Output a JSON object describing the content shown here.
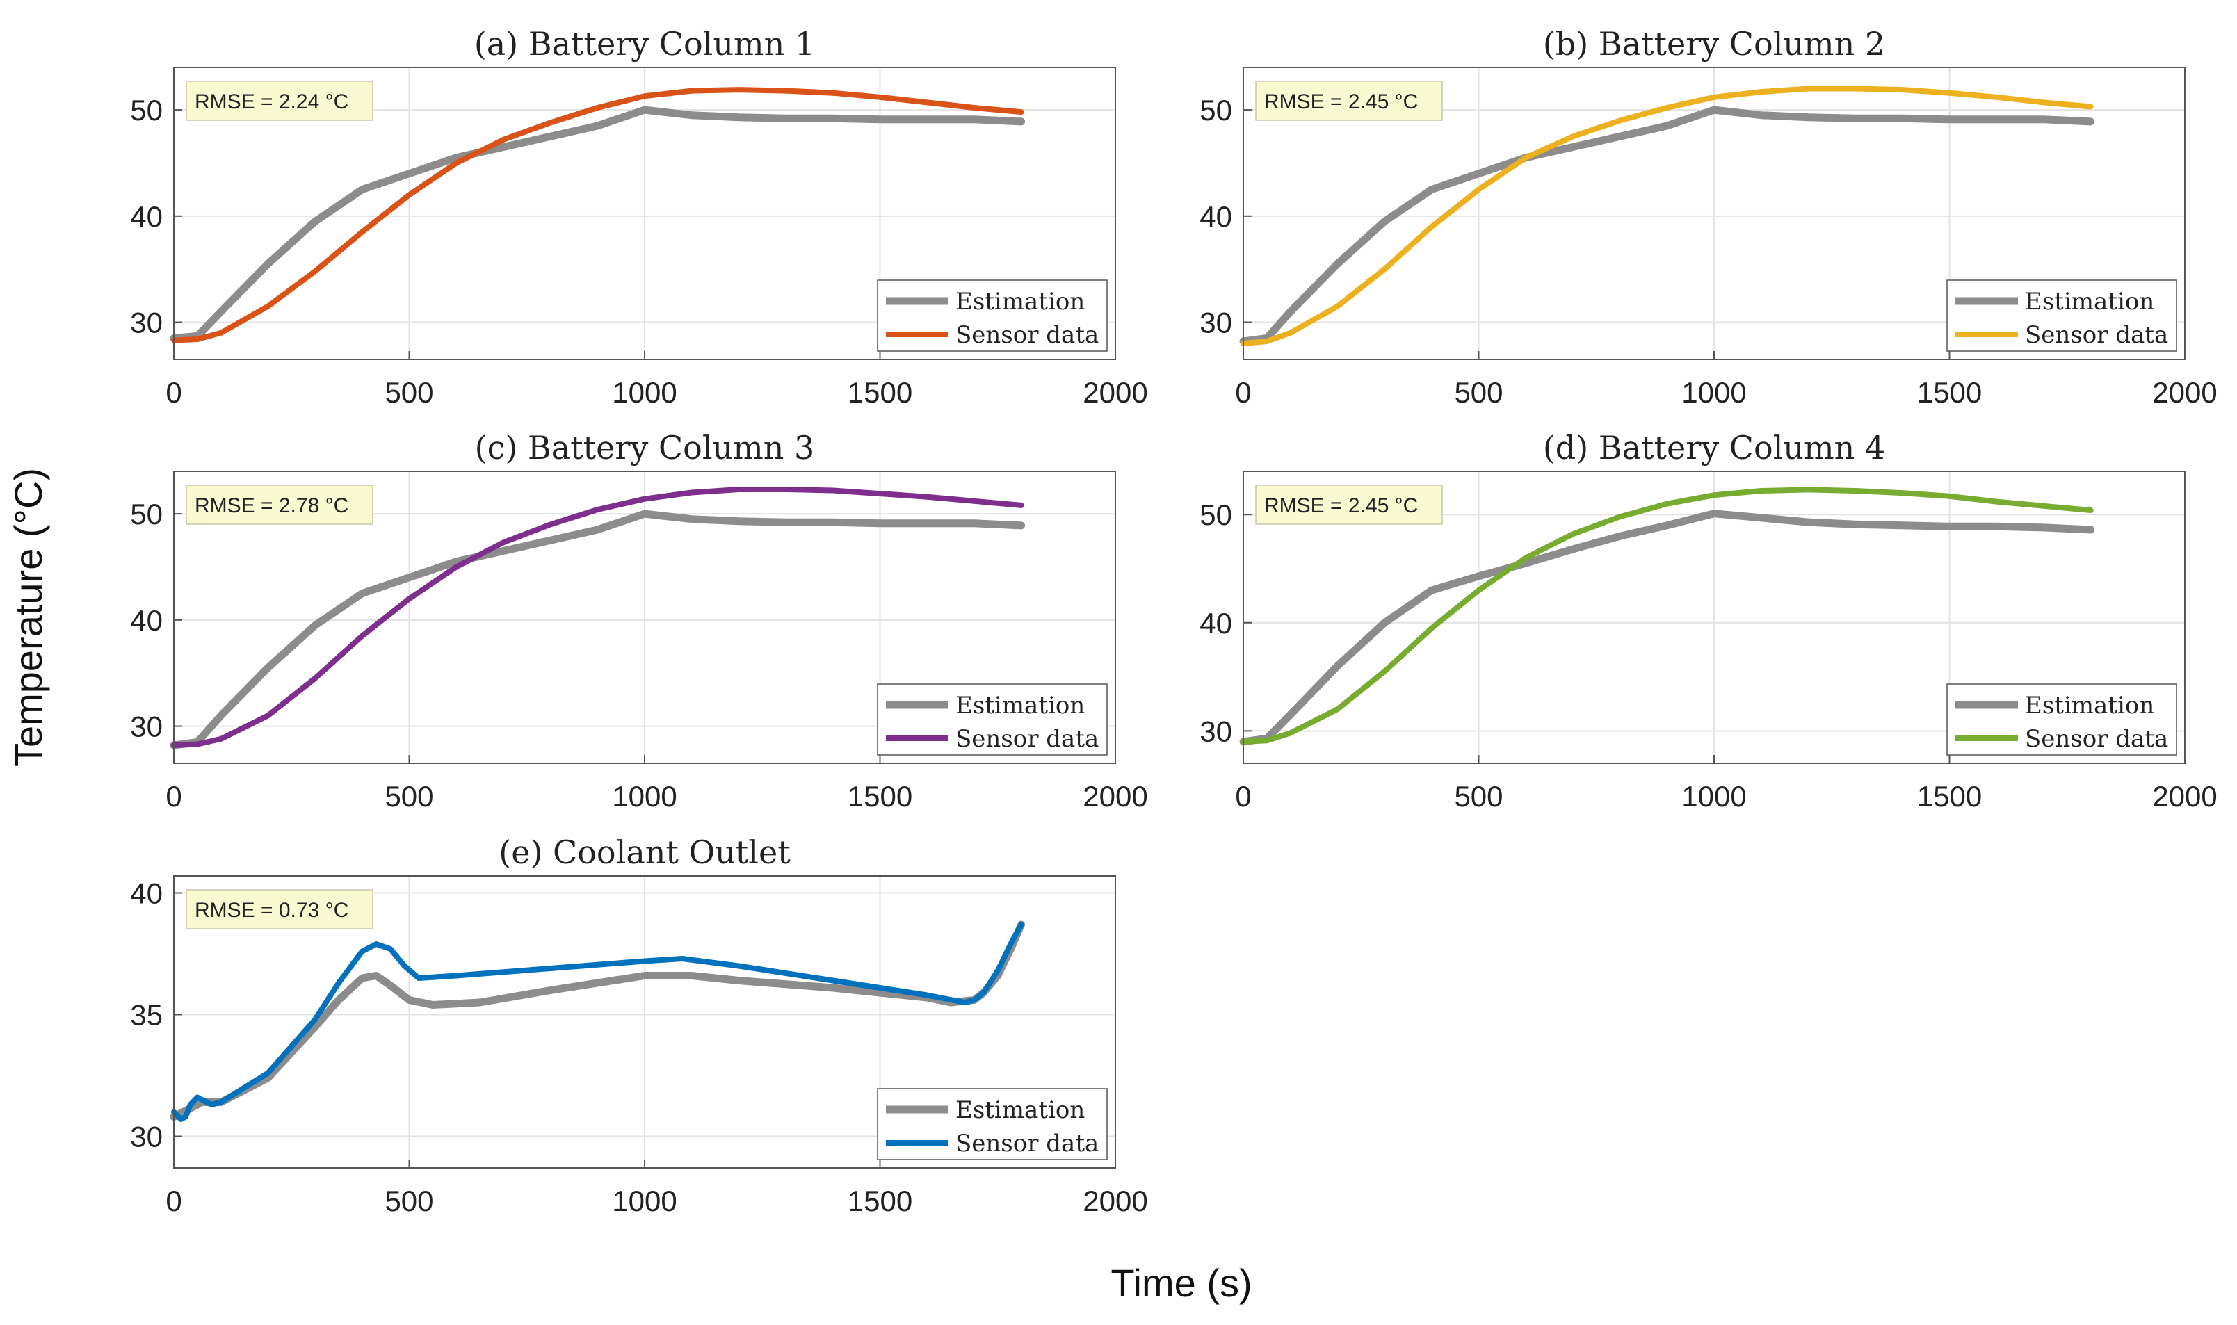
{
  "figure": {
    "ylabel": "Temperature (°C)",
    "xlabel": "Time (s)"
  },
  "colors": {
    "estimation": "#8c8c8c",
    "column1": "#d95319",
    "column2": "#edb120",
    "column3": "#7e2f8e",
    "column4": "#77ac30",
    "coolant": "#0072bd",
    "rmse_box_fill": "#fafad2"
  },
  "chart_data": [
    {
      "type": "line",
      "title": "(a) Battery Column 1",
      "rmse": "RMSE = 2.24 °C",
      "xlim": [
        0,
        2000
      ],
      "ylim": [
        26.5,
        54
      ],
      "xticks": [
        0,
        500,
        1000,
        1500,
        2000
      ],
      "yticks": [
        30,
        40,
        50
      ],
      "legend_placement": "bottom-right",
      "series": [
        {
          "name": "Estimation",
          "color_key": "estimation",
          "x": [
            0,
            50,
            100,
            200,
            300,
            400,
            500,
            600,
            700,
            800,
            900,
            1000,
            1100,
            1200,
            1300,
            1400,
            1500,
            1600,
            1700,
            1800
          ],
          "y": [
            28.5,
            28.7,
            31,
            35.5,
            39.5,
            42.5,
            44,
            45.5,
            46.5,
            47.5,
            48.5,
            50,
            49.5,
            49.3,
            49.2,
            49.2,
            49.1,
            49.1,
            49.1,
            48.9
          ]
        },
        {
          "name": "Sensor data",
          "color_key": "column1",
          "x": [
            0,
            50,
            100,
            200,
            300,
            400,
            500,
            600,
            700,
            800,
            900,
            1000,
            1100,
            1200,
            1300,
            1400,
            1500,
            1600,
            1700,
            1800
          ],
          "y": [
            28.3,
            28.4,
            29,
            31.5,
            34.8,
            38.5,
            42,
            45,
            47.2,
            48.8,
            50.2,
            51.3,
            51.8,
            51.9,
            51.8,
            51.6,
            51.2,
            50.7,
            50.2,
            49.8
          ]
        }
      ]
    },
    {
      "type": "line",
      "title": "(b) Battery Column 2",
      "rmse": "RMSE = 2.45 °C",
      "xlim": [
        0,
        2000
      ],
      "ylim": [
        26.5,
        54
      ],
      "xticks": [
        0,
        500,
        1000,
        1500,
        2000
      ],
      "yticks": [
        30,
        40,
        50
      ],
      "legend_placement": "bottom-right",
      "series": [
        {
          "name": "Estimation",
          "color_key": "estimation",
          "x": [
            0,
            50,
            100,
            200,
            300,
            400,
            500,
            600,
            700,
            800,
            900,
            1000,
            1100,
            1200,
            1300,
            1400,
            1500,
            1600,
            1700,
            1800
          ],
          "y": [
            28.2,
            28.5,
            31,
            35.5,
            39.5,
            42.5,
            44,
            45.5,
            46.5,
            47.5,
            48.5,
            50,
            49.5,
            49.3,
            49.2,
            49.2,
            49.1,
            49.1,
            49.1,
            48.9
          ]
        },
        {
          "name": "Sensor data",
          "color_key": "column2",
          "x": [
            0,
            50,
            100,
            200,
            300,
            400,
            500,
            600,
            700,
            800,
            900,
            1000,
            1100,
            1200,
            1300,
            1400,
            1500,
            1600,
            1700,
            1800
          ],
          "y": [
            28,
            28.2,
            29,
            31.5,
            35,
            39,
            42.5,
            45.5,
            47.5,
            49,
            50.2,
            51.2,
            51.7,
            52,
            52,
            51.9,
            51.6,
            51.2,
            50.7,
            50.3
          ]
        }
      ]
    },
    {
      "type": "line",
      "title": "(c) Battery Column 3",
      "rmse": "RMSE = 2.78 °C",
      "xlim": [
        0,
        2000
      ],
      "ylim": [
        26.5,
        54
      ],
      "xticks": [
        0,
        500,
        1000,
        1500,
        2000
      ],
      "yticks": [
        30,
        40,
        50
      ],
      "legend_placement": "bottom-right",
      "series": [
        {
          "name": "Estimation",
          "color_key": "estimation",
          "x": [
            0,
            50,
            100,
            200,
            300,
            400,
            500,
            600,
            700,
            800,
            900,
            1000,
            1100,
            1200,
            1300,
            1400,
            1500,
            1600,
            1700,
            1800
          ],
          "y": [
            28.2,
            28.5,
            31,
            35.5,
            39.5,
            42.5,
            44,
            45.5,
            46.5,
            47.5,
            48.5,
            50,
            49.5,
            49.3,
            49.2,
            49.2,
            49.1,
            49.1,
            49.1,
            48.9
          ]
        },
        {
          "name": "Sensor data",
          "color_key": "column3",
          "x": [
            0,
            50,
            100,
            200,
            300,
            400,
            500,
            600,
            700,
            800,
            900,
            1000,
            1100,
            1200,
            1300,
            1400,
            1500,
            1600,
            1700,
            1800
          ],
          "y": [
            28.2,
            28.3,
            28.8,
            31,
            34.5,
            38.5,
            42,
            45,
            47.3,
            49,
            50.4,
            51.4,
            52,
            52.3,
            52.3,
            52.2,
            51.9,
            51.6,
            51.2,
            50.8
          ]
        }
      ]
    },
    {
      "type": "line",
      "title": "(d) Battery Column 4",
      "rmse": "RMSE = 2.45 °C",
      "xlim": [
        0,
        2000
      ],
      "ylim": [
        27,
        54
      ],
      "xticks": [
        0,
        500,
        1000,
        1500,
        2000
      ],
      "yticks": [
        30,
        40,
        50
      ],
      "legend_placement": "bottom-right",
      "series": [
        {
          "name": "Estimation",
          "color_key": "estimation",
          "x": [
            0,
            50,
            100,
            200,
            300,
            400,
            500,
            600,
            700,
            800,
            900,
            1000,
            1100,
            1200,
            1300,
            1400,
            1500,
            1600,
            1700,
            1800
          ],
          "y": [
            29,
            29.3,
            31.5,
            36,
            40,
            43,
            44.3,
            45.5,
            46.8,
            48,
            49,
            50.1,
            49.7,
            49.3,
            49.1,
            49,
            48.9,
            48.9,
            48.8,
            48.6
          ]
        },
        {
          "name": "Sensor data",
          "color_key": "column4",
          "x": [
            0,
            50,
            100,
            200,
            300,
            400,
            500,
            600,
            700,
            800,
            900,
            1000,
            1100,
            1200,
            1300,
            1400,
            1500,
            1600,
            1700,
            1800
          ],
          "y": [
            29,
            29.1,
            29.8,
            32,
            35.5,
            39.5,
            43,
            46,
            48.2,
            49.8,
            51,
            51.8,
            52.2,
            52.3,
            52.2,
            52,
            51.7,
            51.2,
            50.8,
            50.4
          ]
        }
      ]
    },
    {
      "type": "line",
      "title": "(e) Coolant Outlet",
      "rmse": "RMSE = 0.73 °C",
      "xlim": [
        0,
        2000
      ],
      "ylim": [
        28.7,
        40.7
      ],
      "xticks": [
        0,
        500,
        1000,
        1500,
        2000
      ],
      "yticks": [
        30,
        35,
        40
      ],
      "legend_placement": "bottom-right",
      "series": [
        {
          "name": "Estimation",
          "color_key": "estimation",
          "x": [
            0,
            20,
            40,
            60,
            100,
            200,
            300,
            350,
            400,
            430,
            460,
            500,
            550,
            650,
            800,
            1000,
            1100,
            1200,
            1400,
            1600,
            1650,
            1700,
            1720,
            1750,
            1780,
            1800
          ],
          "y": [
            30.8,
            31,
            31.2,
            31.4,
            31.4,
            32.4,
            34.5,
            35.6,
            36.5,
            36.6,
            36.2,
            35.6,
            35.4,
            35.5,
            36,
            36.6,
            36.6,
            36.4,
            36.1,
            35.7,
            35.5,
            35.6,
            35.9,
            36.6,
            37.8,
            38.7
          ]
        },
        {
          "name": "Sensor data",
          "color_key": "coolant",
          "x": [
            0,
            15,
            25,
            35,
            50,
            60,
            80,
            100,
            200,
            300,
            350,
            400,
            430,
            460,
            490,
            520,
            600,
            800,
            1000,
            1080,
            1200,
            1400,
            1600,
            1680,
            1700,
            1720,
            1750,
            1780,
            1800
          ],
          "y": [
            31,
            30.7,
            30.8,
            31.3,
            31.6,
            31.5,
            31.3,
            31.4,
            32.6,
            34.8,
            36.3,
            37.6,
            37.9,
            37.7,
            37,
            36.5,
            36.6,
            36.9,
            37.2,
            37.3,
            37,
            36.4,
            35.8,
            35.5,
            35.6,
            35.9,
            36.8,
            38,
            38.7
          ]
        }
      ]
    }
  ]
}
